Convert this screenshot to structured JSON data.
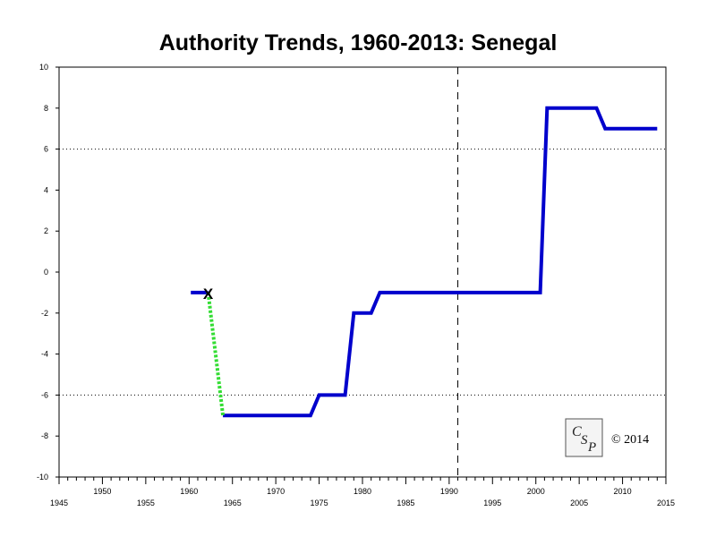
{
  "chart_data": {
    "type": "line",
    "title": "Authority Trends, 1960-2013: Senegal",
    "xlabel": "",
    "ylabel": "",
    "xlim": [
      1945,
      2015
    ],
    "ylim": [
      -10,
      10
    ],
    "x_major_ticks": [
      1945,
      1950,
      1955,
      1960,
      1965,
      1970,
      1975,
      1980,
      1985,
      1990,
      1995,
      2000,
      2005,
      2010,
      2015
    ],
    "y_ticks": [
      -10,
      -8,
      -6,
      -4,
      -2,
      0,
      2,
      4,
      6,
      8,
      10
    ],
    "reference_lines": [
      {
        "axis": "y",
        "value": 6,
        "style": "dotted"
      },
      {
        "axis": "y",
        "value": -6,
        "style": "dotted"
      },
      {
        "axis": "x",
        "value": 1991,
        "style": "dashed"
      }
    ],
    "series": [
      {
        "color": "#0000cc",
        "style": "solid",
        "segments": [
          [
            [
              1960.2,
              -1
            ],
            [
              1962.2,
              -1
            ]
          ],
          [
            [
              1963.9,
              -7
            ],
            [
              1974,
              -7
            ],
            [
              1975,
              -6
            ],
            [
              1978,
              -6
            ],
            [
              1979,
              -2
            ],
            [
              1981,
              -2
            ],
            [
              1982,
              -1
            ],
            [
              2000.5,
              -1
            ],
            [
              2001.3,
              8
            ],
            [
              2007,
              8
            ],
            [
              2008,
              7
            ],
            [
              2014,
              7
            ]
          ]
        ]
      },
      {
        "color": "#33dd33",
        "style": "dotted",
        "segments": [
          [
            [
              1962.2,
              -1
            ],
            [
              1963.9,
              -7
            ]
          ]
        ]
      }
    ],
    "annotations": [
      {
        "text": "X",
        "x": 1962.2,
        "y": -1
      }
    ],
    "logo_text": "CSP",
    "copyright": "© 2014"
  }
}
